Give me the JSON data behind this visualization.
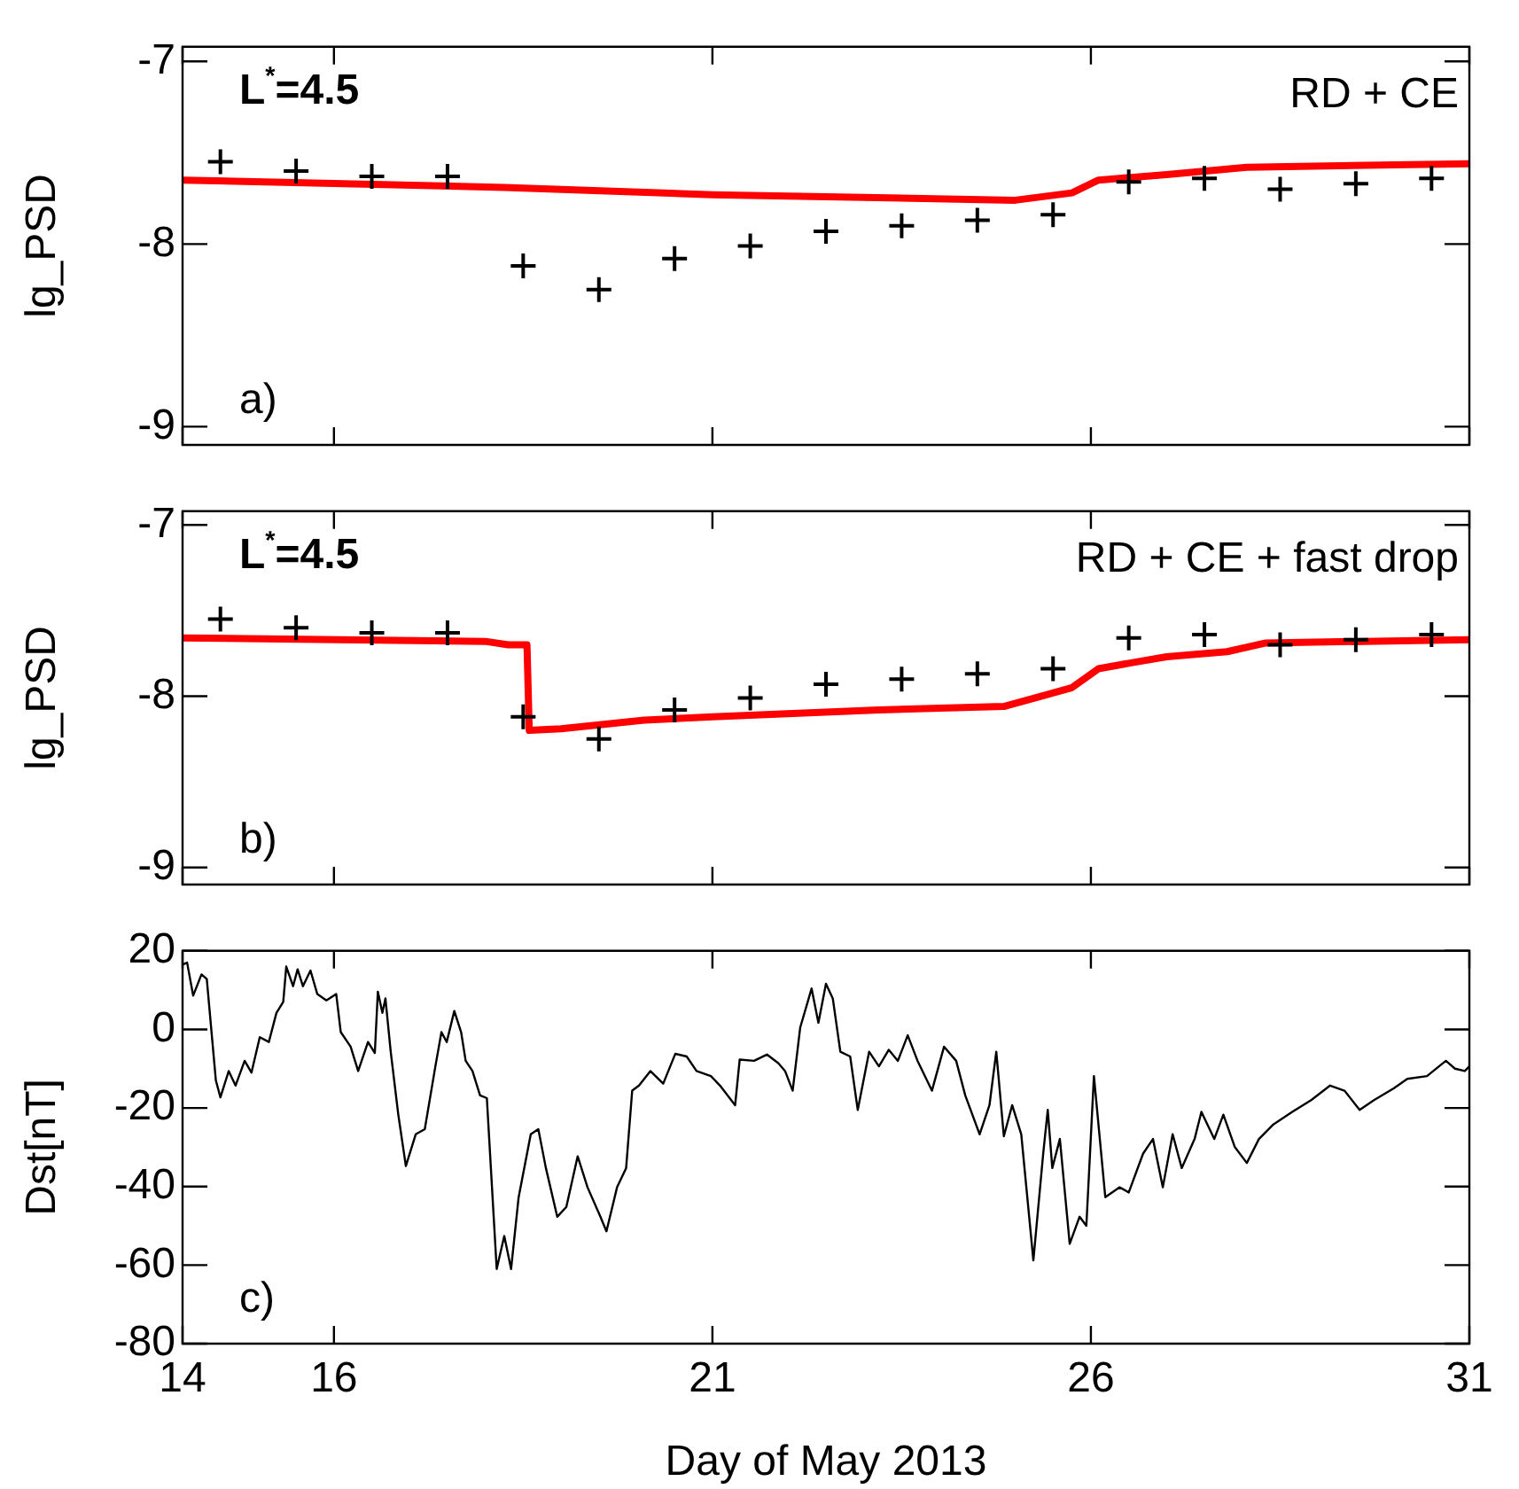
{
  "chart_data": [
    {
      "type": "line",
      "ylabel": "lg_PSD",
      "xlim": [
        14,
        31
      ],
      "xticks": [
        14,
        16,
        21,
        26,
        31
      ],
      "ylim": [
        -9.1,
        -6.92
      ],
      "yticks": [
        -9,
        -8,
        -7
      ],
      "tick_labels": "y",
      "grid": false,
      "annotations": [
        "L$^{*}$=4.5",
        "RD + CE",
        "a)"
      ],
      "series": [
        {
          "type": "scatter",
          "marker": "cross",
          "color": "#000000",
          "x": [
            14.5,
            15.5,
            16.5,
            17.5,
            18.5,
            19.5,
            20.5,
            21.5,
            22.5,
            23.5,
            24.5,
            25.5,
            26.5,
            27.5,
            28.5,
            29.5,
            30.5
          ],
          "values": [
            -7.55,
            -7.6,
            -7.63,
            -7.63,
            -8.12,
            -8.25,
            -8.08,
            -8.01,
            -7.93,
            -7.9,
            -7.87,
            -7.84,
            -7.66,
            -7.64,
            -7.7,
            -7.67,
            -7.64
          ]
        },
        {
          "type": "line",
          "marker": "none",
          "color": "#ff0000",
          "x": [
            14,
            18.25,
            21,
            25,
            25.75,
            26.1,
            27,
            28.06,
            31
          ],
          "values": [
            -7.65,
            -7.69,
            -7.73,
            -7.76,
            -7.72,
            -7.65,
            -7.62,
            -7.58,
            -7.56
          ]
        }
      ]
    },
    {
      "type": "line",
      "ylabel": "lg_PSD",
      "xlim": [
        14,
        31
      ],
      "xticks": [
        14,
        16,
        21,
        26,
        31
      ],
      "ylim": [
        -9.1,
        -6.92
      ],
      "yticks": [
        -9,
        -8,
        -7
      ],
      "tick_labels": "y",
      "grid": false,
      "annotations": [
        "L$^{*}$=4.5",
        "RD + CE + fast drop",
        "b)"
      ],
      "series": [
        {
          "type": "scatter",
          "marker": "cross",
          "color": "#000000",
          "x": [
            14.5,
            15.5,
            16.5,
            17.5,
            18.5,
            19.5,
            20.5,
            21.5,
            22.5,
            23.5,
            24.5,
            25.5,
            26.5,
            27.5,
            28.5,
            29.5,
            30.5
          ],
          "values": [
            -7.55,
            -7.6,
            -7.63,
            -7.63,
            -8.12,
            -8.25,
            -8.08,
            -8.01,
            -7.93,
            -7.9,
            -7.87,
            -7.84,
            -7.66,
            -7.64,
            -7.7,
            -7.67,
            -7.64
          ]
        },
        {
          "type": "line",
          "marker": "none",
          "color": "#ff0000",
          "x": [
            14,
            18.0,
            18.3,
            18.55,
            18.58,
            19.0,
            20.1,
            21,
            23.2,
            24.85,
            25.35,
            25.75,
            26.1,
            26.6,
            27.0,
            27.8,
            28.3,
            29.6,
            31
          ],
          "values": [
            -7.66,
            -7.68,
            -7.7,
            -7.7,
            -8.2,
            -8.19,
            -8.14,
            -8.12,
            -8.08,
            -8.06,
            -8.0,
            -7.95,
            -7.84,
            -7.8,
            -7.77,
            -7.74,
            -7.69,
            -7.68,
            -7.67
          ]
        }
      ]
    },
    {
      "type": "line",
      "ylabel": "Dst[nT]",
      "xlabel": "Day of May 2013",
      "xlim": [
        14,
        31
      ],
      "xticks": [
        14,
        16,
        21,
        26,
        31
      ],
      "ylim": [
        -80,
        20
      ],
      "yticks": [
        -80,
        -60,
        -40,
        -20,
        0,
        20
      ],
      "grid": false,
      "annotations": [
        "c)"
      ],
      "series": [
        {
          "type": "line",
          "marker": "none",
          "color": "#000000",
          "x": [
            14.0,
            14.06,
            14.14,
            14.25,
            14.32,
            14.44,
            14.5,
            14.61,
            14.7,
            14.82,
            14.91,
            15.02,
            15.14,
            15.24,
            15.33,
            15.37,
            15.46,
            15.52,
            15.59,
            15.69,
            15.78,
            15.9,
            16.03,
            16.09,
            16.22,
            16.32,
            16.45,
            16.54,
            16.58,
            16.64,
            16.68,
            16.75,
            16.85,
            16.95,
            17.08,
            17.2,
            17.34,
            17.42,
            17.49,
            17.59,
            17.68,
            17.74,
            17.83,
            17.93,
            18.02,
            18.15,
            18.25,
            18.34,
            18.44,
            18.6,
            18.7,
            18.8,
            18.95,
            19.07,
            19.22,
            19.35,
            19.52,
            19.6,
            19.74,
            19.86,
            19.94,
            20.03,
            20.18,
            20.35,
            20.51,
            20.66,
            20.79,
            20.98,
            21.1,
            21.3,
            21.36,
            21.55,
            21.72,
            21.87,
            21.96,
            22.06,
            22.16,
            22.31,
            22.4,
            22.5,
            22.59,
            22.69,
            22.82,
            22.92,
            23.07,
            23.2,
            23.33,
            23.45,
            23.58,
            23.71,
            23.9,
            24.06,
            24.22,
            24.34,
            24.53,
            24.66,
            24.75,
            24.85,
            24.96,
            25.08,
            25.24,
            25.37,
            25.43,
            25.49,
            25.59,
            25.72,
            25.85,
            25.94,
            26.04,
            26.19,
            26.38,
            26.5,
            26.69,
            26.82,
            26.95,
            27.08,
            27.2,
            27.37,
            27.46,
            27.63,
            27.75,
            27.9,
            28.06,
            28.22,
            28.41,
            28.66,
            28.91,
            29.16,
            29.35,
            29.55,
            29.74,
            30.0,
            30.18,
            30.44,
            30.69,
            30.81,
            30.94,
            31.0
          ],
          "values": [
            16.5,
            17,
            8.6,
            14,
            12.8,
            -13,
            -17.3,
            -10.6,
            -14.3,
            -8,
            -11,
            -2,
            -3.2,
            4.2,
            7,
            16,
            11,
            15.3,
            11,
            15,
            9,
            7.4,
            9,
            -0.7,
            -4.4,
            -10.6,
            -3.2,
            -6,
            9.6,
            4.2,
            7.9,
            -5.7,
            -21.7,
            -34.8,
            -26.7,
            -25.4,
            -9.4,
            -0.7,
            -3.2,
            4.7,
            -0.7,
            -8,
            -10.6,
            -16.8,
            -17.5,
            -61,
            -52.6,
            -61,
            -42.7,
            -26.7,
            -25.4,
            -35.3,
            -47.7,
            -45.2,
            -32.3,
            -40.2,
            -47.7,
            -51.4,
            -40.2,
            -35.3,
            -15.6,
            -14.3,
            -10.6,
            -13.8,
            -6.2,
            -6.9,
            -10.6,
            -11.9,
            -14.3,
            -19.3,
            -7.7,
            -8,
            -6.4,
            -8.6,
            -10.6,
            -15.6,
            0.5,
            10.4,
            1.7,
            11.6,
            7.9,
            -5.7,
            -6.9,
            -20.5,
            -5.7,
            -9.4,
            -5.2,
            -8,
            -1.5,
            -8,
            -15.6,
            -4.4,
            -8,
            -16.8,
            -26.7,
            -19.3,
            -5.7,
            -27.2,
            -19.3,
            -26.7,
            -58.8,
            -31.6,
            -20.5,
            -35.3,
            -27.9,
            -54.6,
            -47.7,
            -50,
            -11.9,
            -42.7,
            -40.2,
            -41.5,
            -31.6,
            -27.9,
            -40.2,
            -26.7,
            -35.3,
            -27.9,
            -21,
            -27.9,
            -21.7,
            -29.9,
            -34,
            -27.9,
            -24.2,
            -21,
            -18,
            -14.3,
            -15.6,
            -20.5,
            -18,
            -15,
            -12.6,
            -11.9,
            -8,
            -10,
            -10.6,
            -9.4
          ]
        }
      ]
    }
  ]
}
